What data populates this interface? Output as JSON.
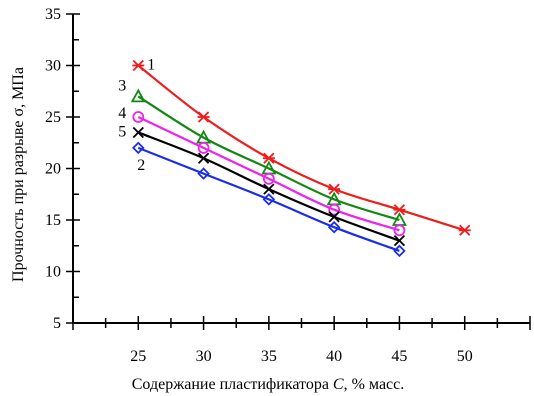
{
  "chart_data": {
    "type": "line",
    "xlabel_prefix": "Содержание пластификатора ",
    "xlabel_var": "C",
    "xlabel_suffix": ", % масс.",
    "ylabel": "Прочность при разрыве σ, МПа",
    "xlim": [
      20,
      55
    ],
    "ylim": [
      5,
      35
    ],
    "x_ticks": [
      25,
      30,
      35,
      40,
      45,
      50
    ],
    "y_ticks": [
      5,
      10,
      15,
      20,
      25,
      30,
      35
    ],
    "grid": false,
    "series": [
      {
        "name": "1",
        "color": "#ee1c1c",
        "marker": "asterisk",
        "x": [
          25,
          30,
          35,
          40,
          45,
          50
        ],
        "y": [
          30,
          25,
          21,
          18,
          16,
          14
        ]
      },
      {
        "name": "3",
        "color": "#118811",
        "marker": "triangle",
        "x": [
          25,
          30,
          35,
          40,
          45
        ],
        "y": [
          27,
          23,
          20,
          17,
          15
        ]
      },
      {
        "name": "4",
        "color": "#ee22ee",
        "marker": "circle",
        "x": [
          25,
          30,
          35,
          40,
          45
        ],
        "y": [
          25,
          22,
          19,
          16,
          14
        ]
      },
      {
        "name": "5",
        "color": "#000000",
        "marker": "cross",
        "x": [
          25,
          30,
          35,
          40,
          45
        ],
        "y": [
          23.5,
          21,
          18,
          15.3,
          13
        ]
      },
      {
        "name": "2",
        "color": "#1a2ee8",
        "marker": "diamond",
        "x": [
          25,
          30,
          35,
          40,
          45
        ],
        "y": [
          22,
          19.5,
          17,
          14.3,
          12
        ]
      }
    ]
  }
}
